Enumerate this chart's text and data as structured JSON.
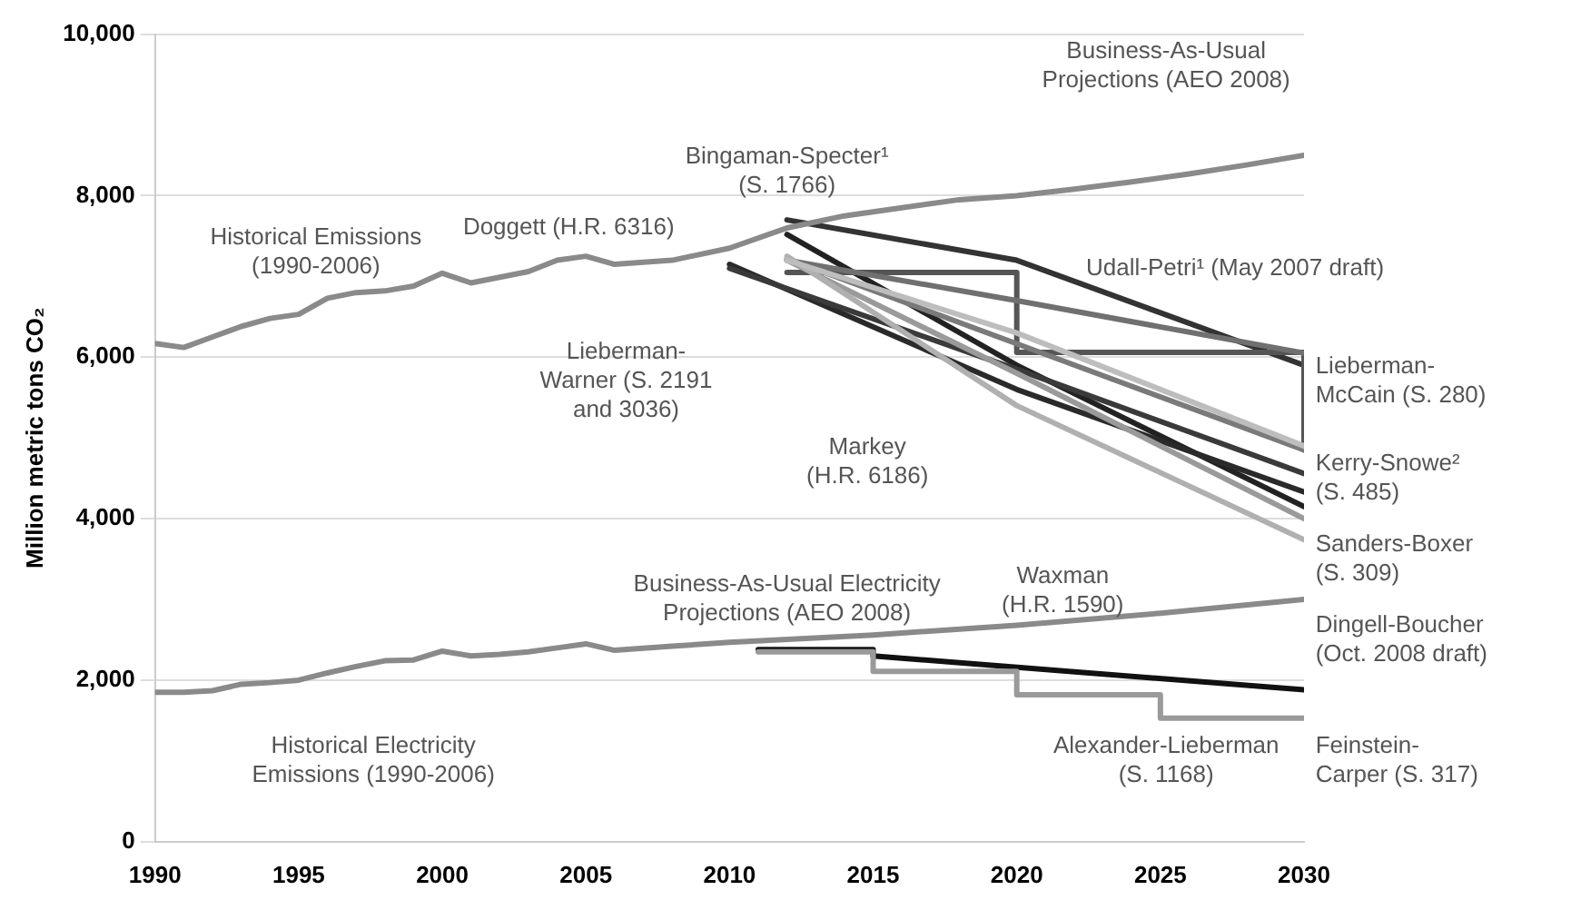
{
  "chart_data": {
    "type": "line",
    "ylabel": "Million metric tons CO₂",
    "xlim": [
      1990,
      2030
    ],
    "xticks": [
      1990,
      1995,
      2000,
      2005,
      2010,
      2015,
      2020,
      2025,
      2030
    ],
    "ylim": [
      0,
      10000
    ],
    "yticks": [
      0,
      {
        "value": 2000,
        "label": "2,000"
      },
      {
        "value": 4000,
        "label": "4,000"
      },
      {
        "value": 6000,
        "label": "6,000"
      },
      {
        "value": 8000,
        "label": "8,000"
      },
      {
        "value": 10000,
        "label": "10,000"
      }
    ],
    "grid": "y",
    "legend": false,
    "marker": "none",
    "line_style": "solid",
    "series": [
      {
        "color": "#8a8a8a",
        "x": [
          1990,
          1991,
          1992,
          1993,
          1994,
          1995,
          1996,
          1997,
          1998,
          1999,
          2000,
          2001,
          2002,
          2003,
          2004,
          2005,
          2006,
          2008,
          2010,
          2012,
          2014,
          2016,
          2018,
          2020,
          2022,
          2024,
          2026,
          2028,
          2030
        ],
        "values": [
          6170,
          6120,
          6250,
          6380,
          6480,
          6530,
          6730,
          6800,
          6820,
          6880,
          7040,
          6920,
          6990,
          7060,
          7200,
          7250,
          7150,
          7200,
          7350,
          7600,
          7750,
          7850,
          7950,
          8000,
          8080,
          8170,
          8270,
          8380,
          8500
        ]
      },
      {
        "color": "#8a8a8a",
        "x": [
          1990,
          1991,
          1992,
          1993,
          1994,
          1995,
          1996,
          1997,
          1998,
          1999,
          2000,
          2001,
          2002,
          2003,
          2004,
          2005,
          2006,
          2008,
          2010,
          2015,
          2020,
          2025,
          2030
        ],
        "values": [
          1850,
          1850,
          1870,
          1950,
          1970,
          2000,
          2090,
          2170,
          2240,
          2250,
          2360,
          2300,
          2320,
          2350,
          2400,
          2450,
          2370,
          2420,
          2470,
          2560,
          2680,
          2830,
          3000
        ]
      },
      {
        "color": "#bdbdbd",
        "x": [
          2012,
          2020,
          2030
        ],
        "values": [
          7200,
          6300,
          4900
        ]
      },
      {
        "color": "#b0b0b0",
        "x": [
          2012,
          2020,
          2030
        ],
        "values": [
          7250,
          5400,
          3740
        ]
      },
      {
        "color": "#9a9a9a",
        "x": [
          2012,
          2020,
          2030
        ],
        "values": [
          7200,
          5800,
          4000
        ]
      },
      {
        "color": "#707070",
        "x": [
          2012,
          2020,
          2030
        ],
        "values": [
          7200,
          6700,
          6050
        ]
      },
      {
        "color": "#7a7a7a",
        "x": [
          2012,
          2030
        ],
        "values": [
          7220,
          4850
        ]
      },
      {
        "color": "#555555",
        "x": [
          2012,
          2020,
          2020,
          2030,
          2030
        ],
        "values": [
          7050,
          7050,
          6060,
          6060,
          4850
        ]
      },
      {
        "color": "#3a3a3a",
        "x": [
          2010,
          2020,
          2030
        ],
        "values": [
          7100,
          5850,
          4560
        ]
      },
      {
        "color": "#2a2a2a",
        "x": [
          2010,
          2020,
          2030
        ],
        "values": [
          7150,
          5600,
          4330
        ]
      },
      {
        "color": "#222222",
        "x": [
          2012,
          2020,
          2030
        ],
        "values": [
          7520,
          5900,
          4150
        ]
      },
      {
        "color": "#333333",
        "x": [
          2012,
          2020,
          2030
        ],
        "values": [
          7700,
          7200,
          5900
        ]
      },
      {
        "color": "#9a9a9a",
        "x": [
          2011,
          2015,
          2015,
          2020,
          2020,
          2025,
          2025,
          2030
        ],
        "values": [
          2350,
          2350,
          2110,
          2110,
          1820,
          1820,
          1530,
          1530
        ]
      },
      {
        "color": "#111111",
        "x": [
          2011,
          2015,
          2015,
          2030
        ],
        "values": [
          2380,
          2380,
          2300,
          1880
        ]
      }
    ],
    "annotations": [
      "Historical Emissions\n(1990-2006)",
      "Business-As-Usual\nProjections (AEO 2008)",
      "Bingaman-Specter¹\n(S. 1766)",
      "Doggett (H.R. 6316)",
      "Udall-Petri¹ (May 2007 draft)",
      "Lieberman-\nWarner (S. 2191\nand 3036)",
      "Markey\n(H.R. 6186)",
      "Waxman\n(H.R. 1590)",
      "Lieberman-\nMcCain (S. 280)",
      "Kerry-Snowe²\n(S. 485)",
      "Sanders-Boxer\n(S. 309)",
      "Dingell-Boucher\n(Oct. 2008 draft)",
      "Feinstein-\nCarper (S. 317)",
      "Business-As-Usual Electricity\nProjections (AEO 2008)",
      "Historical Electricity\nEmissions (1990-2006)",
      "Alexander-Lieberman\n(S. 1168)"
    ]
  }
}
